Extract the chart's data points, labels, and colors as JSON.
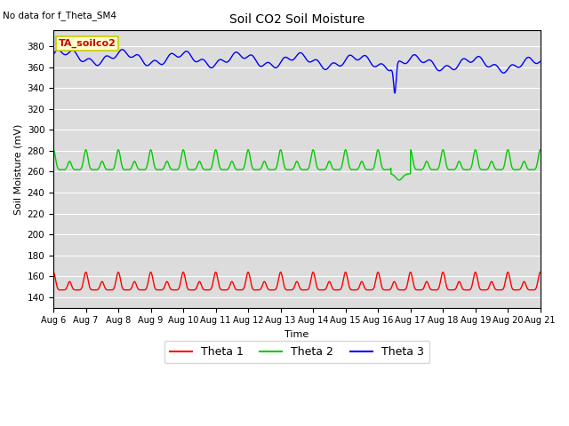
{
  "title": "Soil CO2 Soil Moisture",
  "no_data_text": "No data for f_Theta_SM4",
  "ylabel": "Soil Moisture (mV)",
  "xlabel": "Time",
  "legend_label": "TA_soilco2",
  "ylim": [
    130,
    395
  ],
  "yticks": [
    140,
    160,
    180,
    200,
    220,
    240,
    260,
    280,
    300,
    320,
    340,
    360,
    380
  ],
  "xtick_labels": [
    "Aug 6",
    "Aug 7",
    "Aug 8",
    "Aug 9",
    "Aug 10",
    "Aug 11",
    "Aug 12",
    "Aug 13",
    "Aug 14",
    "Aug 15",
    "Aug 16",
    "Aug 17",
    "Aug 18",
    "Aug 19",
    "Aug 20",
    "Aug 21"
  ],
  "theta1_color": "#ff0000",
  "theta2_color": "#00cc00",
  "theta3_color": "#0000ff",
  "bg_color": "#dcdcdc",
  "legend_box_facecolor": "#ffffcc",
  "legend_box_edgecolor": "#cccc00"
}
